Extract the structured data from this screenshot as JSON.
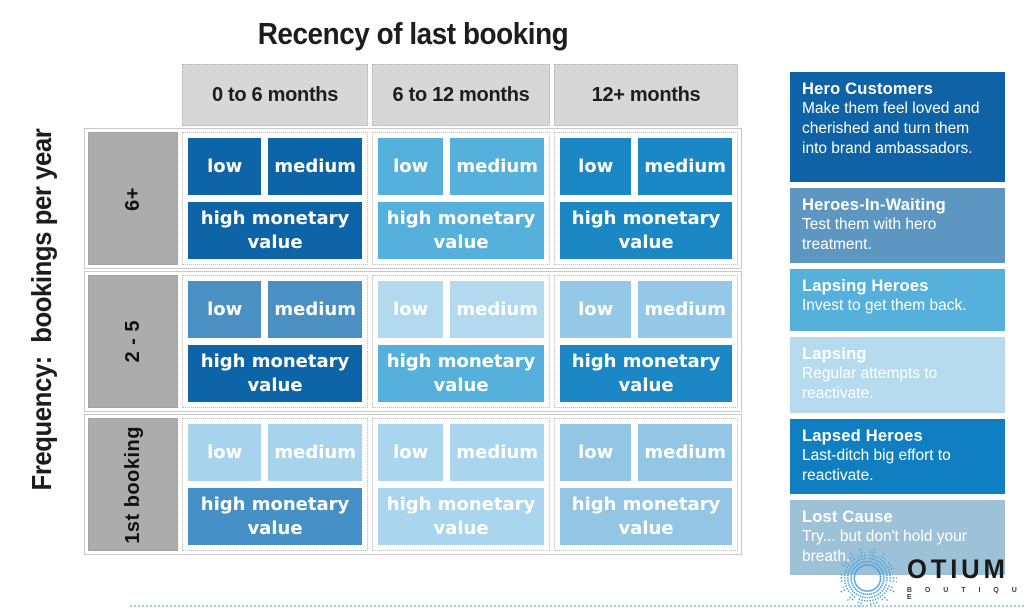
{
  "title": "Recency of last booking",
  "y_axis_label": "Frequency:  bookings per year",
  "column_headers": [
    "0 to 6 months",
    "6 to 12 months",
    "12+ months"
  ],
  "tile_labels": {
    "low": "low",
    "medium": "medium",
    "high": "high monetary value"
  },
  "matrix": {
    "rows": [
      {
        "label": "6+",
        "cells": [
          {
            "low": "#0d64a7",
            "medium": "#0d64a7",
            "high": "#0d64a7"
          },
          {
            "low": "#55b1db",
            "medium": "#55b1db",
            "high": "#55b1db"
          },
          {
            "low": "#1b87c4",
            "medium": "#1b87c4",
            "high": "#1b87c4"
          }
        ]
      },
      {
        "label": "2 - 5",
        "cells": [
          {
            "low": "#4a90c3",
            "medium": "#4a90c3",
            "high": "#0d64a7"
          },
          {
            "low": "#b2d9ee",
            "medium": "#b2d9ee",
            "high": "#55b1db"
          },
          {
            "low": "#93c8e6",
            "medium": "#93c8e6",
            "high": "#1b87c4"
          }
        ]
      },
      {
        "label": "1st booking",
        "cells": [
          {
            "low": "#a7d4ec",
            "medium": "#a7d4ec",
            "high": "#4690c8"
          },
          {
            "low": "#a9d6ee",
            "medium": "#a9d6ee",
            "high": "#a9d6ee"
          },
          {
            "low": "#92c6e4",
            "medium": "#92c6e4",
            "high": "#92c6e4"
          }
        ]
      }
    ]
  },
  "legend": [
    {
      "title": "Hero Customers",
      "body": "Make them feel loved and cherished and turn them into brand ambassadors.",
      "color": "#0e62a5"
    },
    {
      "title": "Heroes-In-Waiting",
      "body": "Test them with hero treatment.",
      "color": "#5e96c2"
    },
    {
      "title": "Lapsing Heroes",
      "body": "Invest to get them back.",
      "color": "#55b1db"
    },
    {
      "title": "Lapsing",
      "body": "Regular attempts to reactivate.",
      "color": "#b7dbee"
    },
    {
      "title": "Lapsed Heroes",
      "body": "Last-ditch big effort to reactivate.",
      "color": "#0f7fc1"
    },
    {
      "title": "Lost Cause",
      "body": "Try... but don't hold your breath.",
      "color": "#9dc2d8"
    }
  ],
  "logo": {
    "name": "OTIUM",
    "subtitle": "B O U T I Q U E",
    "ray_color": "#4aa0d8"
  },
  "ui_colors": {
    "column_header_bg": "#d7d7d7",
    "row_header_bg": "#acacac",
    "frame_border": "#c9c9c9",
    "bottom_line": "#a3cce8"
  }
}
